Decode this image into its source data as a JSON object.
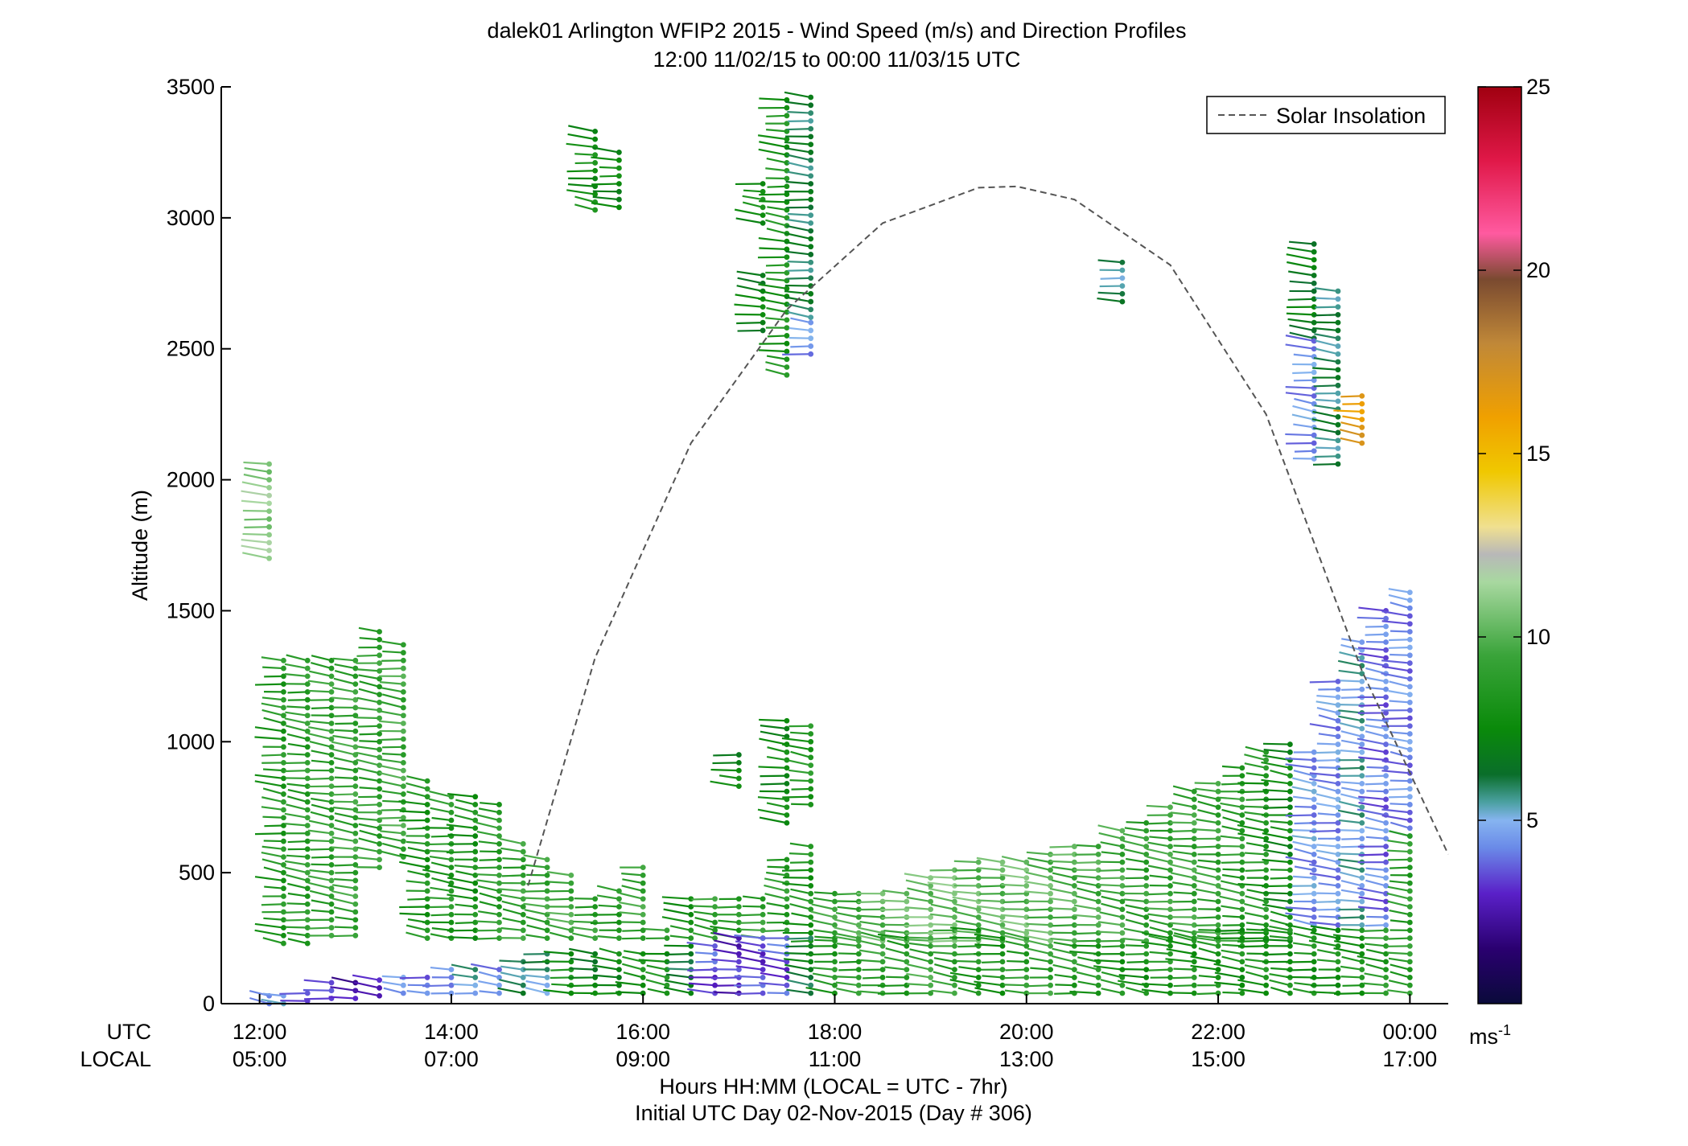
{
  "chart_data": {
    "type": "scatter",
    "title": "dalek01 Arlington WFIP2 2015 - Wind Speed (m/s) and Direction Profiles",
    "subtitle": "12:00 11/02/15 to 00:00 11/03/15  UTC",
    "ylabel": "Altitude (m)",
    "xlabel": "Hours HH:MM  (LOCAL = UTC - 7hr)",
    "xlabel2": "Initial UTC Day 02-Nov-2015 (Day # 306)",
    "row_label_utc": "UTC",
    "row_label_local": "LOCAL",
    "ylim": [
      0,
      3500
    ],
    "xlim_hours": [
      11.6,
      24.4
    ],
    "yticks": [
      0,
      500,
      1000,
      1500,
      2000,
      2500,
      3000,
      3500
    ],
    "ytick_labels": [
      "0",
      "500",
      "1000",
      "1500",
      "2000",
      "2500",
      "3000",
      "3500"
    ],
    "xticks_hours": [
      12,
      14,
      16,
      18,
      20,
      22,
      24
    ],
    "xtick_labels_utc": [
      "12:00",
      "14:00",
      "16:00",
      "18:00",
      "20:00",
      "22:00",
      "00:00"
    ],
    "xtick_labels_local": [
      "05:00",
      "07:00",
      "09:00",
      "11:00",
      "13:00",
      "15:00",
      "17:00"
    ],
    "legend": {
      "label": "Solar Insolation",
      "placement": "top-right"
    },
    "colorbar": {
      "min": 0,
      "max": 25,
      "ticks": [
        5,
        10,
        15,
        20,
        25
      ],
      "tick_labels": [
        "5",
        "10",
        "15",
        "20",
        "25"
      ],
      "unit_base": "ms",
      "unit_exp": "-1"
    },
    "solar_insolation": {
      "x_hours": [
        14.8,
        15.5,
        16.5,
        17.5,
        18.5,
        19.5,
        19.9,
        20.5,
        21.5,
        22.5,
        23.5,
        24.4
      ],
      "y_altitude": [
        450,
        1320,
        2140,
        2650,
        2980,
        3115,
        3120,
        3070,
        2820,
        2250,
        1270,
        570
      ]
    },
    "barb_profiles": [
      {
        "t": 12.1,
        "segments": [
          [
            1700,
            2080,
            11.0
          ],
          [
            0,
            40,
            3.5
          ]
        ]
      },
      {
        "t": 12.25,
        "segments": [
          [
            230,
            1320,
            8.5
          ],
          [
            0,
            40,
            5.0
          ]
        ]
      },
      {
        "t": 12.5,
        "segments": [
          [
            230,
            1320,
            8.8
          ],
          [
            10,
            60,
            4.0
          ]
        ]
      },
      {
        "t": 12.75,
        "segments": [
          [
            260,
            1330,
            9.0
          ],
          [
            20,
            90,
            3.0
          ]
        ]
      },
      {
        "t": 13.0,
        "segments": [
          [
            260,
            1330,
            9.2
          ],
          [
            20,
            90,
            2.5
          ]
        ]
      },
      {
        "t": 13.25,
        "segments": [
          [
            520,
            1440,
            9.0
          ],
          [
            30,
            100,
            3.2
          ]
        ]
      },
      {
        "t": 13.5,
        "segments": [
          [
            560,
            1380,
            9.4
          ],
          [
            40,
            100,
            4.2
          ]
        ]
      },
      {
        "t": 13.75,
        "segments": [
          [
            250,
            870,
            8.2
          ],
          [
            40,
            120,
            3.8
          ]
        ]
      },
      {
        "t": 14.0,
        "segments": [
          [
            250,
            790,
            8.6
          ],
          [
            40,
            150,
            4.6
          ]
        ]
      },
      {
        "t": 14.25,
        "segments": [
          [
            250,
            790,
            8.0
          ],
          [
            40,
            150,
            5.2
          ]
        ]
      },
      {
        "t": 14.5,
        "segments": [
          [
            250,
            780,
            8.8
          ],
          [
            40,
            130,
            4.0
          ]
        ]
      },
      {
        "t": 14.75,
        "segments": [
          [
            250,
            620,
            9.1
          ],
          [
            40,
            180,
            6.0
          ]
        ]
      },
      {
        "t": 15.0,
        "segments": [
          [
            250,
            560,
            9.2
          ],
          [
            40,
            200,
            5.5
          ]
        ]
      },
      {
        "t": 15.25,
        "segments": [
          [
            250,
            500,
            9.5
          ],
          [
            40,
            200,
            8.0
          ]
        ]
      },
      {
        "t": 15.5,
        "segments": [
          [
            250,
            420,
            9.0
          ],
          [
            40,
            200,
            7.0
          ],
          [
            3030,
            3350,
            7.8
          ]
        ]
      },
      {
        "t": 15.75,
        "segments": [
          [
            250,
            440,
            8.5
          ],
          [
            40,
            200,
            7.5
          ],
          [
            3040,
            3250,
            7.5
          ]
        ]
      },
      {
        "t": 16.0,
        "segments": [
          [
            250,
            520,
            9.3
          ],
          [
            40,
            200,
            8.0
          ]
        ]
      },
      {
        "t": 16.25,
        "segments": [
          [
            250,
            300,
            9.0
          ],
          [
            40,
            200,
            8.2
          ]
        ]
      },
      {
        "t": 16.5,
        "segments": [
          [
            250,
            420,
            8.0
          ],
          [
            40,
            220,
            6.5
          ]
        ]
      },
      {
        "t": 16.75,
        "segments": [
          [
            250,
            400,
            9.0
          ],
          [
            40,
            240,
            3.5
          ]
        ]
      },
      {
        "t": 17.0,
        "segments": [
          [
            250,
            420,
            8.4
          ],
          [
            40,
            250,
            3.0
          ],
          [
            830,
            960,
            7.4
          ]
        ]
      },
      {
        "t": 17.25,
        "segments": [
          [
            250,
            400,
            9.0
          ],
          [
            40,
            260,
            3.3
          ],
          [
            2980,
            3150,
            7.8
          ],
          [
            2570,
            2800,
            7.2
          ]
        ]
      },
      {
        "t": 17.5,
        "segments": [
          [
            250,
            560,
            8.8
          ],
          [
            40,
            260,
            3.5
          ],
          [
            690,
            1080,
            7.6
          ],
          [
            2400,
            3460,
            8.2
          ]
        ]
      },
      {
        "t": 17.75,
        "segments": [
          [
            240,
            620,
            8.2
          ],
          [
            40,
            260,
            6.5
          ],
          [
            760,
            1080,
            8.5
          ],
          [
            2480,
            2600,
            4.4
          ],
          [
            2620,
            3460,
            6.2
          ]
        ]
      },
      {
        "t": 18.0,
        "segments": [
          [
            240,
            420,
            9.2
          ],
          [
            40,
            250,
            8.5
          ]
        ]
      },
      {
        "t": 18.25,
        "segments": [
          [
            240,
            420,
            9.5
          ],
          [
            40,
            250,
            8.8
          ]
        ]
      },
      {
        "t": 18.5,
        "segments": [
          [
            240,
            430,
            10.0
          ],
          [
            40,
            260,
            9.0
          ]
        ]
      },
      {
        "t": 18.75,
        "segments": [
          [
            240,
            440,
            10.2
          ],
          [
            40,
            260,
            8.6
          ]
        ]
      },
      {
        "t": 19.0,
        "segments": [
          [
            240,
            500,
            10.4
          ],
          [
            40,
            270,
            9.4
          ]
        ]
      },
      {
        "t": 19.25,
        "segments": [
          [
            240,
            520,
            10.5
          ],
          [
            40,
            280,
            9.0
          ]
        ]
      },
      {
        "t": 19.5,
        "segments": [
          [
            240,
            540,
            10.2
          ],
          [
            40,
            280,
            8.4
          ]
        ]
      },
      {
        "t": 19.75,
        "segments": [
          [
            240,
            560,
            10.0
          ],
          [
            40,
            270,
            8.2
          ]
        ]
      },
      {
        "t": 20.0,
        "segments": [
          [
            240,
            560,
            10.3
          ],
          [
            40,
            250,
            8.8
          ]
        ]
      },
      {
        "t": 20.25,
        "segments": [
          [
            240,
            580,
            10.1
          ],
          [
            40,
            240,
            9.1
          ]
        ]
      },
      {
        "t": 20.5,
        "segments": [
          [
            240,
            600,
            9.8
          ],
          [
            40,
            240,
            8.7
          ]
        ]
      },
      {
        "t": 20.75,
        "segments": [
          [
            240,
            620,
            9.6
          ],
          [
            40,
            240,
            8.5
          ]
        ]
      },
      {
        "t": 21.0,
        "segments": [
          [
            240,
            660,
            9.4
          ],
          [
            40,
            240,
            8.3
          ],
          [
            2680,
            2840,
            5.8
          ]
        ]
      },
      {
        "t": 21.25,
        "segments": [
          [
            240,
            700,
            9.0
          ],
          [
            40,
            240,
            8.0
          ]
        ]
      },
      {
        "t": 21.5,
        "segments": [
          [
            240,
            760,
            9.2
          ],
          [
            40,
            260,
            8.4
          ]
        ]
      },
      {
        "t": 21.75,
        "segments": [
          [
            240,
            820,
            9.3
          ],
          [
            40,
            260,
            8.2
          ]
        ]
      },
      {
        "t": 22.0,
        "segments": [
          [
            240,
            860,
            9.1
          ],
          [
            40,
            280,
            8.1
          ]
        ]
      },
      {
        "t": 22.25,
        "segments": [
          [
            240,
            900,
            8.8
          ],
          [
            40,
            280,
            8.0
          ]
        ]
      },
      {
        "t": 22.5,
        "segments": [
          [
            240,
            980,
            8.4
          ],
          [
            40,
            280,
            8.2
          ]
        ]
      },
      {
        "t": 22.75,
        "segments": [
          [
            240,
            1000,
            7.6
          ],
          [
            40,
            300,
            8.0
          ]
        ]
      },
      {
        "t": 23.0,
        "segments": [
          [
            300,
            960,
            4.5
          ],
          [
            40,
            300,
            8.0
          ],
          [
            2540,
            2900,
            6.8
          ],
          [
            2080,
            2550,
            4.4
          ]
        ]
      },
      {
        "t": 23.25,
        "segments": [
          [
            300,
            1250,
            4.4
          ],
          [
            40,
            300,
            8.0
          ],
          [
            2060,
            2740,
            6.0
          ]
        ]
      },
      {
        "t": 23.5,
        "segments": [
          [
            300,
            1400,
            5.2
          ],
          [
            40,
            300,
            8.2
          ],
          [
            2140,
            2340,
            16.5
          ]
        ]
      },
      {
        "t": 23.75,
        "segments": [
          [
            300,
            1520,
            4.0
          ],
          [
            40,
            300,
            8.6
          ]
        ]
      },
      {
        "t": 24.0,
        "segments": [
          [
            640,
            1580,
            4.2
          ],
          [
            40,
            640,
            8.8
          ]
        ]
      }
    ]
  }
}
